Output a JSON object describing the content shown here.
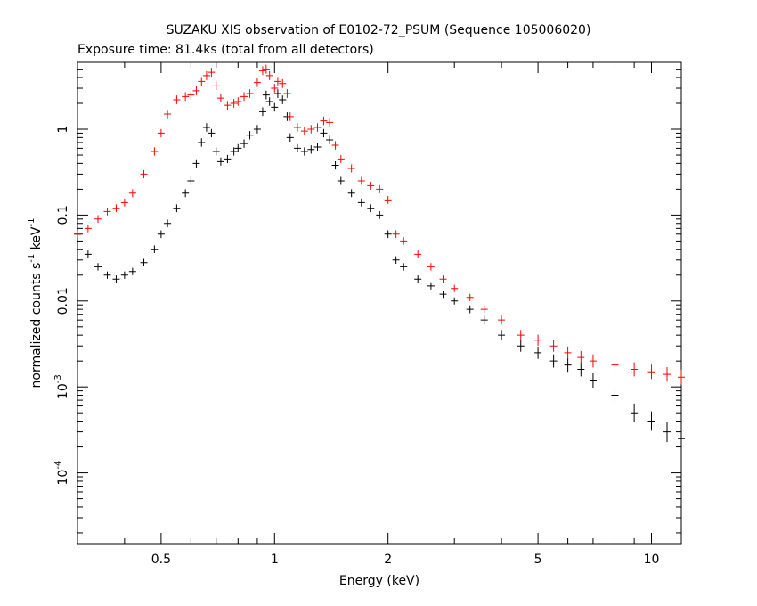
{
  "chart_data": {
    "type": "scatter",
    "title": "SUZAKU XIS observation of E0102-72_PSUM (Sequence 105006020)",
    "subtitle": "Exposure time: 81.4ks (total from all detectors)",
    "xlabel": "Energy (keV)",
    "ylabel": {
      "base": "normalized counts s",
      "exp1": "-1",
      "mid": " keV",
      "exp2": "-1"
    },
    "x_scale": "log",
    "y_scale": "log",
    "xlim": [
      0.3,
      12
    ],
    "ylim": [
      1.5e-05,
      6
    ],
    "x_ticks": [
      {
        "value": 0.5,
        "label": "0.5"
      },
      {
        "value": 1,
        "label": "1"
      },
      {
        "value": 2,
        "label": "2"
      },
      {
        "value": 5,
        "label": "5"
      },
      {
        "value": 10,
        "label": "10"
      }
    ],
    "y_ticks": [
      {
        "value": 1,
        "label": "1"
      },
      {
        "value": 0.1,
        "label": "0.1"
      },
      {
        "value": 0.01,
        "label": "0.01"
      },
      {
        "value": 0.001,
        "label": "10",
        "exp": "-3"
      },
      {
        "value": 0.0001,
        "label": "10",
        "exp": "-4"
      }
    ],
    "grid": false,
    "legend": "none",
    "series": [
      {
        "color": "#000000",
        "points": [
          [
            0.3,
            0.06
          ],
          [
            0.32,
            0.035
          ],
          [
            0.34,
            0.025
          ],
          [
            0.36,
            0.02
          ],
          [
            0.38,
            0.018
          ],
          [
            0.4,
            0.02
          ],
          [
            0.42,
            0.022
          ],
          [
            0.45,
            0.028
          ],
          [
            0.48,
            0.04
          ],
          [
            0.5,
            0.06
          ],
          [
            0.52,
            0.08
          ],
          [
            0.55,
            0.12
          ],
          [
            0.58,
            0.18
          ],
          [
            0.6,
            0.25
          ],
          [
            0.62,
            0.4
          ],
          [
            0.64,
            0.7
          ],
          [
            0.66,
            1.05
          ],
          [
            0.68,
            0.9
          ],
          [
            0.7,
            0.55
          ],
          [
            0.72,
            0.42
          ],
          [
            0.75,
            0.45
          ],
          [
            0.78,
            0.55
          ],
          [
            0.8,
            0.6
          ],
          [
            0.83,
            0.68
          ],
          [
            0.86,
            0.85
          ],
          [
            0.9,
            1.0
          ],
          [
            0.93,
            1.6
          ],
          [
            0.95,
            2.5
          ],
          [
            0.97,
            2.1
          ],
          [
            1.0,
            1.8
          ],
          [
            1.02,
            2.6
          ],
          [
            1.05,
            2.2
          ],
          [
            1.08,
            1.4
          ],
          [
            1.1,
            0.8
          ],
          [
            1.15,
            0.6
          ],
          [
            1.2,
            0.55
          ],
          [
            1.25,
            0.58
          ],
          [
            1.3,
            0.62
          ],
          [
            1.35,
            0.9
          ],
          [
            1.4,
            0.75
          ],
          [
            1.45,
            0.38
          ],
          [
            1.5,
            0.25
          ],
          [
            1.6,
            0.18
          ],
          [
            1.7,
            0.14
          ],
          [
            1.8,
            0.12
          ],
          [
            1.9,
            0.1
          ],
          [
            2.0,
            0.06
          ],
          [
            2.1,
            0.03
          ],
          [
            2.2,
            0.025
          ],
          [
            2.4,
            0.018
          ],
          [
            2.6,
            0.015
          ],
          [
            2.8,
            0.012
          ],
          [
            3.0,
            0.01
          ],
          [
            3.3,
            0.008
          ],
          [
            3.6,
            0.006
          ],
          [
            4.0,
            0.004
          ],
          [
            4.5,
            0.003
          ],
          [
            5.0,
            0.0025
          ],
          [
            5.5,
            0.002
          ],
          [
            6.0,
            0.0018
          ],
          [
            6.5,
            0.0016
          ],
          [
            7.0,
            0.0012
          ],
          [
            8.0,
            0.0008
          ],
          [
            9.0,
            0.0005
          ],
          [
            10.0,
            0.0004
          ],
          [
            11.0,
            0.0003
          ],
          [
            12.0,
            0.00025
          ]
        ]
      },
      {
        "color": "#ff0000",
        "points": [
          [
            0.3,
            0.06
          ],
          [
            0.32,
            0.07
          ],
          [
            0.34,
            0.09
          ],
          [
            0.36,
            0.11
          ],
          [
            0.38,
            0.12
          ],
          [
            0.4,
            0.14
          ],
          [
            0.42,
            0.18
          ],
          [
            0.45,
            0.3
          ],
          [
            0.48,
            0.55
          ],
          [
            0.5,
            0.9
          ],
          [
            0.52,
            1.5
          ],
          [
            0.55,
            2.2
          ],
          [
            0.58,
            2.4
          ],
          [
            0.6,
            2.5
          ],
          [
            0.62,
            2.8
          ],
          [
            0.64,
            3.6
          ],
          [
            0.66,
            4.2
          ],
          [
            0.68,
            4.6
          ],
          [
            0.7,
            3.2
          ],
          [
            0.72,
            2.3
          ],
          [
            0.75,
            1.9
          ],
          [
            0.78,
            2.0
          ],
          [
            0.8,
            2.1
          ],
          [
            0.83,
            2.4
          ],
          [
            0.86,
            2.6
          ],
          [
            0.9,
            3.5
          ],
          [
            0.93,
            4.8
          ],
          [
            0.95,
            5.0
          ],
          [
            0.97,
            4.2
          ],
          [
            1.0,
            3.0
          ],
          [
            1.02,
            3.6
          ],
          [
            1.05,
            3.4
          ],
          [
            1.08,
            2.6
          ],
          [
            1.1,
            1.4
          ],
          [
            1.15,
            1.05
          ],
          [
            1.2,
            0.95
          ],
          [
            1.25,
            1.0
          ],
          [
            1.3,
            1.05
          ],
          [
            1.35,
            1.25
          ],
          [
            1.4,
            1.2
          ],
          [
            1.45,
            0.65
          ],
          [
            1.5,
            0.45
          ],
          [
            1.6,
            0.35
          ],
          [
            1.7,
            0.25
          ],
          [
            1.8,
            0.22
          ],
          [
            1.9,
            0.2
          ],
          [
            2.0,
            0.15
          ],
          [
            2.1,
            0.06
          ],
          [
            2.2,
            0.05
          ],
          [
            2.4,
            0.035
          ],
          [
            2.6,
            0.025
          ],
          [
            2.8,
            0.018
          ],
          [
            3.0,
            0.014
          ],
          [
            3.3,
            0.011
          ],
          [
            3.6,
            0.008
          ],
          [
            4.0,
            0.006
          ],
          [
            4.5,
            0.004
          ],
          [
            5.0,
            0.0035
          ],
          [
            5.5,
            0.003
          ],
          [
            6.0,
            0.0025
          ],
          [
            6.5,
            0.0022
          ],
          [
            7.0,
            0.002
          ],
          [
            8.0,
            0.0018
          ],
          [
            9.0,
            0.0016
          ],
          [
            10.0,
            0.0015
          ],
          [
            11.0,
            0.0014
          ],
          [
            12.0,
            0.0013
          ]
        ]
      }
    ]
  }
}
